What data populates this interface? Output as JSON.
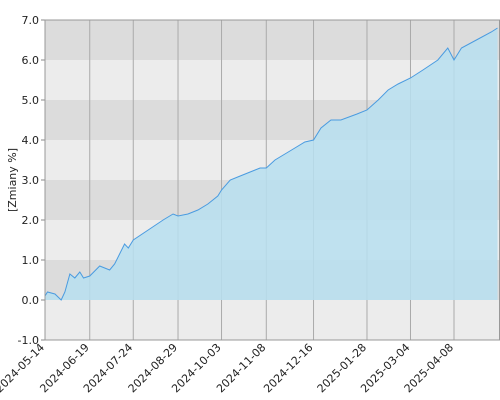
{
  "chart_data": {
    "type": "area",
    "y_label": "[Zmiany %]",
    "x": [
      "2024-05-14",
      "2024-05-16",
      "2024-05-22",
      "2024-05-27",
      "2024-05-30",
      "2024-06-03",
      "2024-06-07",
      "2024-06-11",
      "2024-06-14",
      "2024-06-19",
      "2024-06-27",
      "2024-07-05",
      "2024-07-09",
      "2024-07-17",
      "2024-07-20",
      "2024-07-24",
      "2024-08-05",
      "2024-08-17",
      "2024-08-25",
      "2024-08-29",
      "2024-09-06",
      "2024-09-14",
      "2024-09-22",
      "2024-09-30",
      "2024-10-03",
      "2024-10-10",
      "2024-10-18",
      "2024-10-26",
      "2024-11-03",
      "2024-11-08",
      "2024-11-15",
      "2024-11-23",
      "2024-12-01",
      "2024-12-09",
      "2024-12-16",
      "2024-12-22",
      "2024-12-30",
      "2025-01-07",
      "2025-01-20",
      "2025-01-28",
      "2025-02-06",
      "2025-02-14",
      "2025-02-22",
      "2025-03-04",
      "2025-03-14",
      "2025-03-26",
      "2025-04-03",
      "2025-04-08",
      "2025-04-14",
      "2025-04-26",
      "2025-05-08",
      "2025-05-13"
    ],
    "values": [
      0.1,
      0.2,
      0.15,
      0.0,
      0.2,
      0.65,
      0.55,
      0.7,
      0.55,
      0.6,
      0.85,
      0.75,
      0.9,
      1.4,
      1.3,
      1.5,
      1.75,
      2.0,
      2.15,
      2.1,
      2.15,
      2.25,
      2.4,
      2.6,
      2.75,
      3.0,
      3.1,
      3.2,
      3.3,
      3.3,
      3.5,
      3.65,
      3.8,
      3.95,
      4.0,
      4.3,
      4.5,
      4.5,
      4.65,
      4.75,
      5.0,
      5.25,
      5.4,
      5.55,
      5.75,
      6.0,
      6.3,
      6.0,
      6.3,
      6.5,
      6.7,
      6.8
    ],
    "color": "#4a9be0",
    "fill": "#b7dff0",
    "xlim": [
      "2024-05-14",
      "2025-05-15"
    ],
    "xticks": [
      "2024-05-14",
      "2024-06-19",
      "2024-07-24",
      "2024-08-29",
      "2024-10-03",
      "2024-11-08",
      "2024-12-16",
      "2025-01-28",
      "2025-03-04",
      "2025-04-08"
    ],
    "ylim": [
      -1,
      7
    ],
    "yticks": [
      {
        "value": -1,
        "label": "-1.0"
      },
      {
        "value": 0,
        "label": "0.0"
      },
      {
        "value": 1,
        "label": "1.0"
      },
      {
        "value": 2,
        "label": "2.0"
      },
      {
        "value": 3,
        "label": "3.0"
      },
      {
        "value": 4,
        "label": "4.0"
      },
      {
        "value": 5,
        "label": "5.0"
      },
      {
        "value": 6,
        "label": "6.0"
      },
      {
        "value": 7,
        "label": "7.0"
      }
    ],
    "grid": true,
    "band_colors": [
      "#ececec",
      "#dcdcdc"
    ]
  }
}
